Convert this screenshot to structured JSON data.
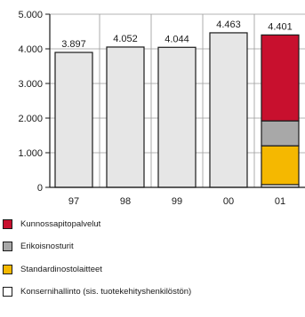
{
  "chart_data": {
    "type": "bar",
    "categories": [
      "97",
      "98",
      "99",
      "00",
      "01"
    ],
    "series": [
      {
        "name": "Konsernihallinto (sis. tuotekehityshenkilöstön)",
        "values": [
          3897,
          4052,
          4044,
          4463,
          80
        ],
        "color": "#e6e6e6"
      },
      {
        "name": "Standardinostolaitteet",
        "values": [
          0,
          0,
          0,
          0,
          1120
        ],
        "color": "#f5b800"
      },
      {
        "name": "Erikoisnosturit",
        "values": [
          0,
          0,
          0,
          0,
          720
        ],
        "color": "#a8a8a8"
      },
      {
        "name": "Kunnossapitopalvelut",
        "values": [
          0,
          0,
          0,
          0,
          2481
        ],
        "color": "#c8102e"
      }
    ],
    "totals": [
      "3.897",
      "4.052",
      "4.044",
      "4.463",
      "4.401"
    ],
    "y_ticks": [
      "0",
      "1.000",
      "2.000",
      "3.000",
      "4.000",
      "5.000"
    ],
    "ylim": [
      0,
      5000
    ],
    "grid": true,
    "legend_order": [
      3,
      2,
      1,
      0
    ],
    "legend_position": "bottom"
  }
}
